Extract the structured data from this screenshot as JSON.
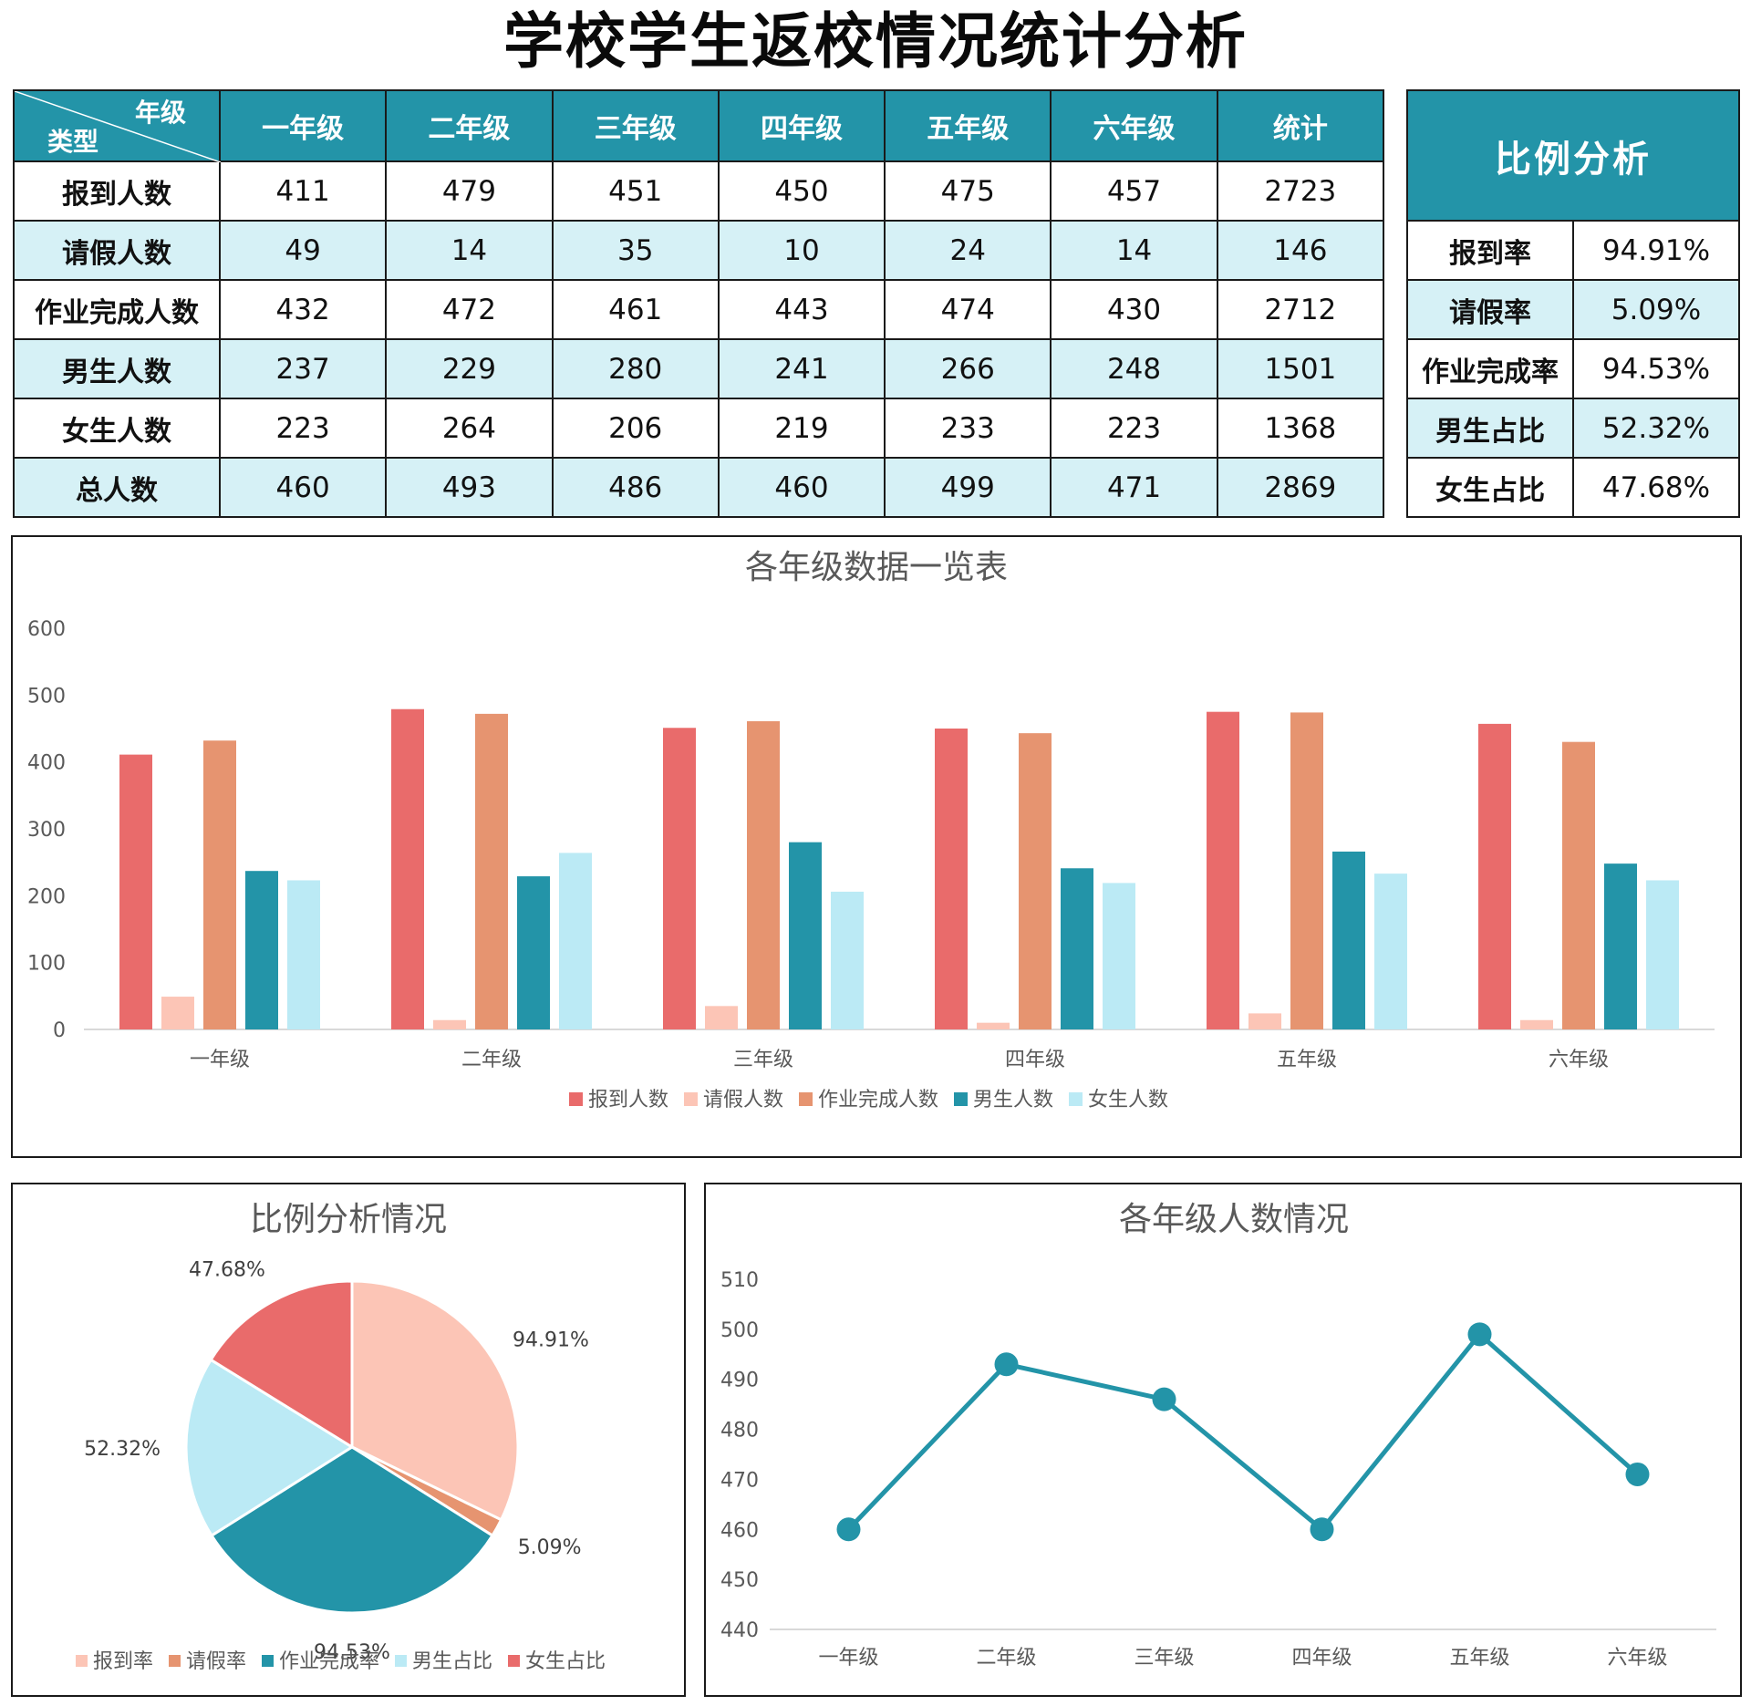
{
  "title": "学校学生返校情况统计分析",
  "main_table": {
    "corner_top": "年级",
    "corner_bottom": "类型",
    "columns": [
      "一年级",
      "二年级",
      "三年级",
      "四年级",
      "五年级",
      "六年级",
      "统计"
    ],
    "rows": [
      {
        "label": "报到人数",
        "values": [
          "411",
          "479",
          "451",
          "450",
          "475",
          "457",
          "2723"
        ]
      },
      {
        "label": "请假人数",
        "values": [
          "49",
          "14",
          "35",
          "10",
          "24",
          "14",
          "146"
        ]
      },
      {
        "label": "作业完成人数",
        "values": [
          "432",
          "472",
          "461",
          "443",
          "474",
          "430",
          "2712"
        ]
      },
      {
        "label": "男生人数",
        "values": [
          "237",
          "229",
          "280",
          "241",
          "266",
          "248",
          "1501"
        ]
      },
      {
        "label": "女生人数",
        "values": [
          "223",
          "264",
          "206",
          "219",
          "233",
          "223",
          "1368"
        ]
      },
      {
        "label": "总人数",
        "values": [
          "460",
          "493",
          "486",
          "460",
          "499",
          "471",
          "2869"
        ]
      }
    ]
  },
  "ratio_table": {
    "header": "比例分析",
    "rows": [
      {
        "label": "报到率",
        "value": "94.91%"
      },
      {
        "label": "请假率",
        "value": "5.09%"
      },
      {
        "label": "作业完成率",
        "value": "94.53%"
      },
      {
        "label": "男生占比",
        "value": "52.32%"
      },
      {
        "label": "女生占比",
        "value": "47.68%"
      }
    ]
  },
  "chart_data": [
    {
      "type": "bar",
      "title": "各年级数据一览表",
      "categories": [
        "一年级",
        "二年级",
        "三年级",
        "四年级",
        "五年级",
        "六年级"
      ],
      "series": [
        {
          "name": "报到人数",
          "color": "#e96b6b",
          "values": [
            411,
            479,
            451,
            450,
            475,
            457
          ]
        },
        {
          "name": "请假人数",
          "color": "#fcc5b6",
          "values": [
            49,
            14,
            35,
            10,
            24,
            14
          ]
        },
        {
          "name": "作业完成人数",
          "color": "#e69470",
          "values": [
            432,
            472,
            461,
            443,
            474,
            430
          ]
        },
        {
          "name": "男生人数",
          "color": "#2394a8",
          "values": [
            237,
            229,
            280,
            241,
            266,
            248
          ]
        },
        {
          "name": "女生人数",
          "color": "#bbeaf5",
          "values": [
            223,
            264,
            206,
            219,
            233,
            223
          ]
        }
      ],
      "ylim": [
        0,
        600
      ],
      "yticks": [
        0,
        100,
        200,
        300,
        400,
        500,
        600
      ],
      "legend": "bottom",
      "grid": false
    },
    {
      "type": "pie",
      "title": "比例分析情况",
      "categories": [
        "报到率",
        "请假率",
        "作业完成率",
        "男生占比",
        "女生占比"
      ],
      "values": [
        94.91,
        5.09,
        94.53,
        52.32,
        47.68
      ],
      "labels": [
        "94.91%",
        "5.09%",
        "94.53%",
        "52.32%",
        "47.68%"
      ],
      "colors": [
        "#fcc5b6",
        "#e69470",
        "#2394a8",
        "#bbeaf5",
        "#e96b6b"
      ],
      "legend": "bottom"
    },
    {
      "type": "line",
      "title": "各年级人数情况",
      "categories": [
        "一年级",
        "二年级",
        "三年级",
        "四年级",
        "五年级",
        "六年级"
      ],
      "values": [
        460,
        493,
        486,
        460,
        499,
        471
      ],
      "color": "#2394a8",
      "ylim": [
        440,
        510
      ],
      "yticks": [
        440,
        450,
        460,
        470,
        480,
        490,
        500,
        510
      ],
      "grid": false
    }
  ]
}
